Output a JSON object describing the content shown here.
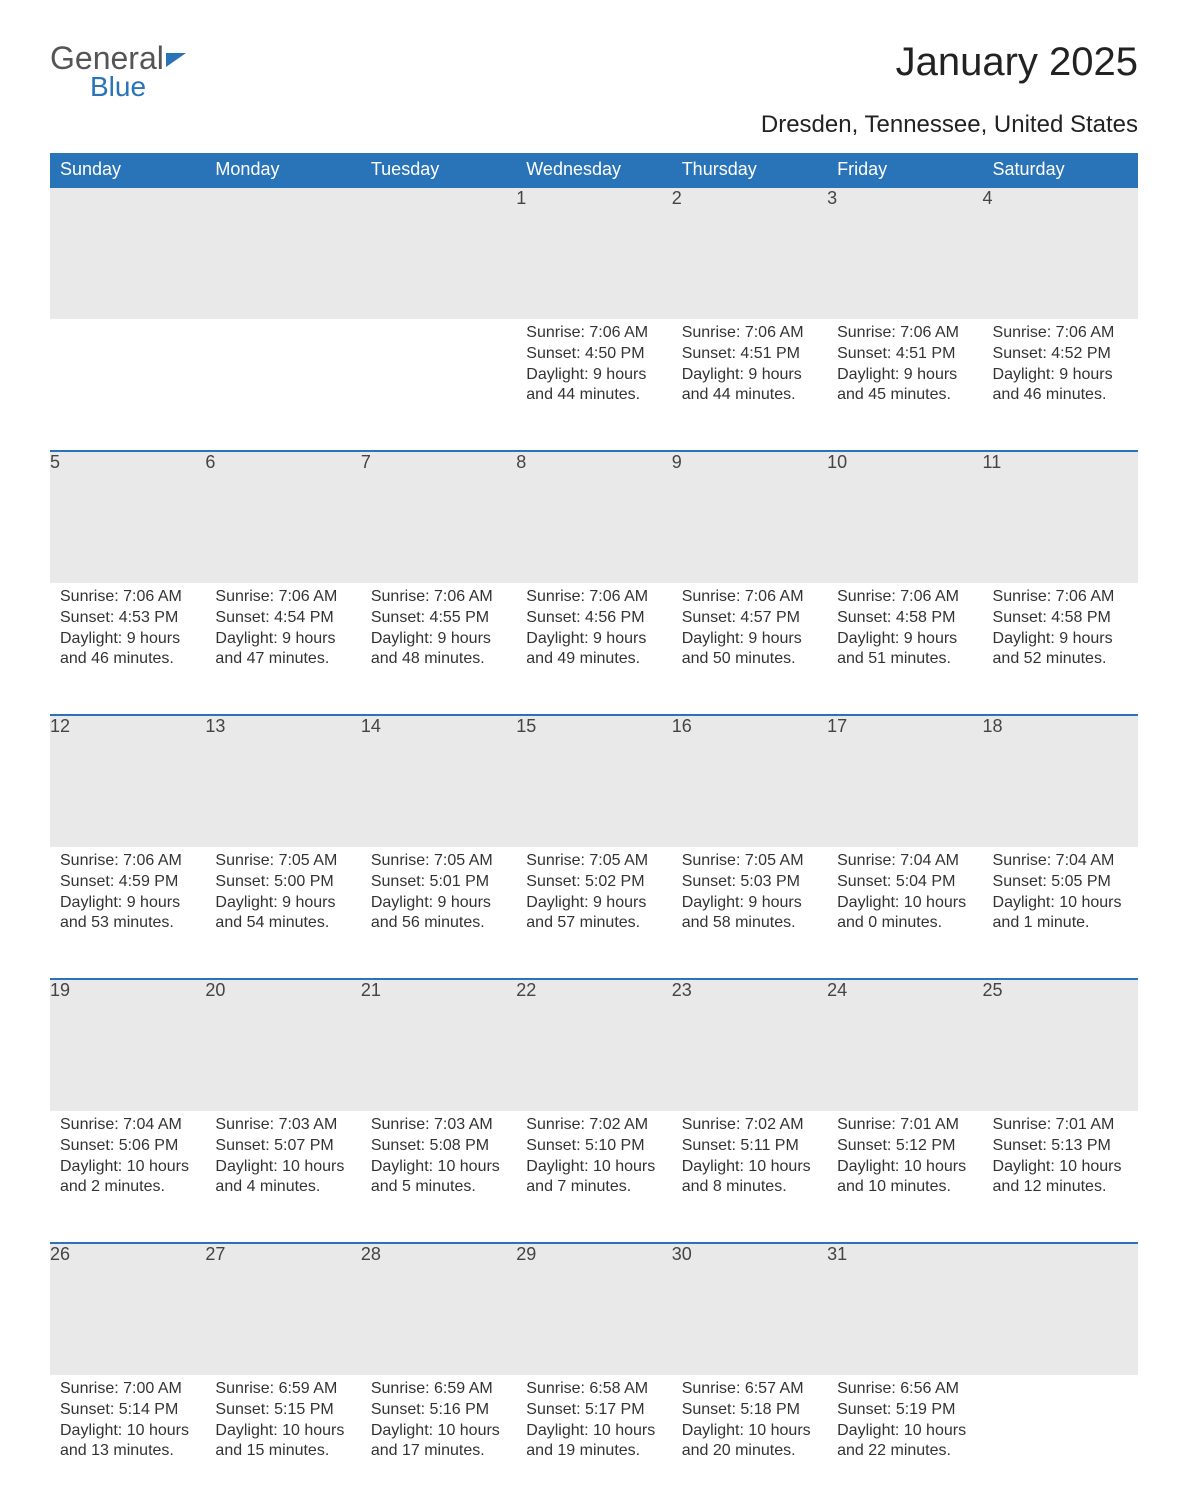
{
  "brand": {
    "general": "General",
    "blue": "Blue"
  },
  "title": "January 2025",
  "subtitle": "Dresden, Tennessee, United States",
  "colors": {
    "header_bg": "#2974b8",
    "header_text": "#ffffff",
    "daynum_bg": "#e9e9e9",
    "page_bg": "#ffffff",
    "text": "#333333",
    "rule": "#2974b8"
  },
  "typography": {
    "title_fontsize": 40,
    "subtitle_fontsize": 24,
    "header_fontsize": 18,
    "daynum_fontsize": 18,
    "body_fontsize": 16
  },
  "calendar": {
    "day_labels": [
      "Sunday",
      "Monday",
      "Tuesday",
      "Wednesday",
      "Thursday",
      "Friday",
      "Saturday"
    ],
    "labels": {
      "sunrise": "Sunrise",
      "sunset": "Sunset",
      "daylight": "Daylight"
    },
    "weeks": [
      [
        null,
        null,
        null,
        {
          "n": "1",
          "sunrise": "7:06 AM",
          "sunset": "4:50 PM",
          "daylight": "9 hours and 44 minutes."
        },
        {
          "n": "2",
          "sunrise": "7:06 AM",
          "sunset": "4:51 PM",
          "daylight": "9 hours and 44 minutes."
        },
        {
          "n": "3",
          "sunrise": "7:06 AM",
          "sunset": "4:51 PM",
          "daylight": "9 hours and 45 minutes."
        },
        {
          "n": "4",
          "sunrise": "7:06 AM",
          "sunset": "4:52 PM",
          "daylight": "9 hours and 46 minutes."
        }
      ],
      [
        {
          "n": "5",
          "sunrise": "7:06 AM",
          "sunset": "4:53 PM",
          "daylight": "9 hours and 46 minutes."
        },
        {
          "n": "6",
          "sunrise": "7:06 AM",
          "sunset": "4:54 PM",
          "daylight": "9 hours and 47 minutes."
        },
        {
          "n": "7",
          "sunrise": "7:06 AM",
          "sunset": "4:55 PM",
          "daylight": "9 hours and 48 minutes."
        },
        {
          "n": "8",
          "sunrise": "7:06 AM",
          "sunset": "4:56 PM",
          "daylight": "9 hours and 49 minutes."
        },
        {
          "n": "9",
          "sunrise": "7:06 AM",
          "sunset": "4:57 PM",
          "daylight": "9 hours and 50 minutes."
        },
        {
          "n": "10",
          "sunrise": "7:06 AM",
          "sunset": "4:58 PM",
          "daylight": "9 hours and 51 minutes."
        },
        {
          "n": "11",
          "sunrise": "7:06 AM",
          "sunset": "4:58 PM",
          "daylight": "9 hours and 52 minutes."
        }
      ],
      [
        {
          "n": "12",
          "sunrise": "7:06 AM",
          "sunset": "4:59 PM",
          "daylight": "9 hours and 53 minutes."
        },
        {
          "n": "13",
          "sunrise": "7:05 AM",
          "sunset": "5:00 PM",
          "daylight": "9 hours and 54 minutes."
        },
        {
          "n": "14",
          "sunrise": "7:05 AM",
          "sunset": "5:01 PM",
          "daylight": "9 hours and 56 minutes."
        },
        {
          "n": "15",
          "sunrise": "7:05 AM",
          "sunset": "5:02 PM",
          "daylight": "9 hours and 57 minutes."
        },
        {
          "n": "16",
          "sunrise": "7:05 AM",
          "sunset": "5:03 PM",
          "daylight": "9 hours and 58 minutes."
        },
        {
          "n": "17",
          "sunrise": "7:04 AM",
          "sunset": "5:04 PM",
          "daylight": "10 hours and 0 minutes."
        },
        {
          "n": "18",
          "sunrise": "7:04 AM",
          "sunset": "5:05 PM",
          "daylight": "10 hours and 1 minute."
        }
      ],
      [
        {
          "n": "19",
          "sunrise": "7:04 AM",
          "sunset": "5:06 PM",
          "daylight": "10 hours and 2 minutes."
        },
        {
          "n": "20",
          "sunrise": "7:03 AM",
          "sunset": "5:07 PM",
          "daylight": "10 hours and 4 minutes."
        },
        {
          "n": "21",
          "sunrise": "7:03 AM",
          "sunset": "5:08 PM",
          "daylight": "10 hours and 5 minutes."
        },
        {
          "n": "22",
          "sunrise": "7:02 AM",
          "sunset": "5:10 PM",
          "daylight": "10 hours and 7 minutes."
        },
        {
          "n": "23",
          "sunrise": "7:02 AM",
          "sunset": "5:11 PM",
          "daylight": "10 hours and 8 minutes."
        },
        {
          "n": "24",
          "sunrise": "7:01 AM",
          "sunset": "5:12 PM",
          "daylight": "10 hours and 10 minutes."
        },
        {
          "n": "25",
          "sunrise": "7:01 AM",
          "sunset": "5:13 PM",
          "daylight": "10 hours and 12 minutes."
        }
      ],
      [
        {
          "n": "26",
          "sunrise": "7:00 AM",
          "sunset": "5:14 PM",
          "daylight": "10 hours and 13 minutes."
        },
        {
          "n": "27",
          "sunrise": "6:59 AM",
          "sunset": "5:15 PM",
          "daylight": "10 hours and 15 minutes."
        },
        {
          "n": "28",
          "sunrise": "6:59 AM",
          "sunset": "5:16 PM",
          "daylight": "10 hours and 17 minutes."
        },
        {
          "n": "29",
          "sunrise": "6:58 AM",
          "sunset": "5:17 PM",
          "daylight": "10 hours and 19 minutes."
        },
        {
          "n": "30",
          "sunrise": "6:57 AM",
          "sunset": "5:18 PM",
          "daylight": "10 hours and 20 minutes."
        },
        {
          "n": "31",
          "sunrise": "6:56 AM",
          "sunset": "5:19 PM",
          "daylight": "10 hours and 22 minutes."
        },
        null
      ]
    ]
  }
}
